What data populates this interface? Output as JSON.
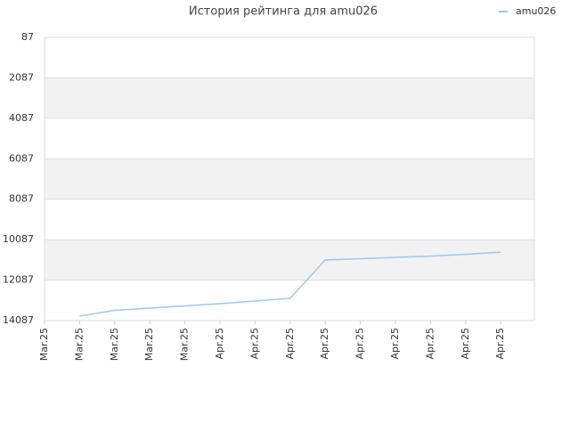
{
  "chart_data": {
    "type": "line",
    "title": "История рейтинга для amu026",
    "categories": [
      "Mar.25",
      "Mar.25",
      "Mar.25",
      "Mar.25",
      "Mar.25",
      "Apr.25",
      "Apr.25",
      "Apr.25",
      "Apr.25",
      "Apr.25",
      "Apr.25",
      "Apr.25",
      "Apr.25",
      "Apr.25"
    ],
    "series": [
      {
        "name": "amu026",
        "color": "#99c8ee",
        "values": [
          null,
          13870,
          13580,
          13470,
          13360,
          13250,
          13120,
          12990,
          11090,
          11030,
          10960,
          10900,
          10810,
          10700
        ]
      }
    ],
    "ylim": [
      87,
      14087
    ],
    "y_inverted": true,
    "yticks": [
      87,
      2087,
      4087,
      6087,
      8087,
      10087,
      12087,
      14087
    ],
    "grid": true,
    "legend": "top-right"
  }
}
